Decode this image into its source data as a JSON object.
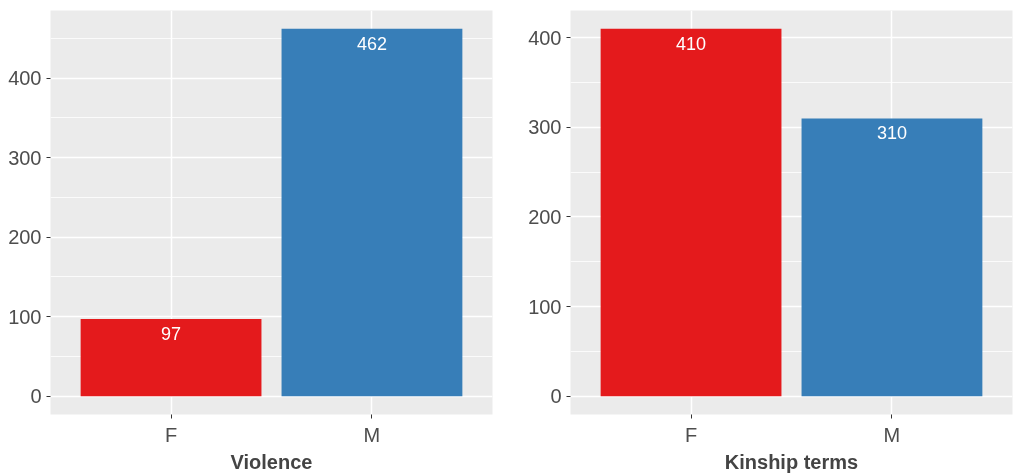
{
  "chart_data": [
    {
      "type": "bar",
      "xlabel": "Violence",
      "categories": [
        "F",
        "M"
      ],
      "values": [
        97,
        462
      ],
      "colors": [
        "#e41a1c",
        "#377eb8"
      ],
      "ylim": [
        -23.1,
        485.1
      ],
      "yticks": [
        0,
        100,
        200,
        300,
        400
      ],
      "grid": true,
      "data_labels": true
    },
    {
      "type": "bar",
      "xlabel": "Kinship terms",
      "categories": [
        "F",
        "M"
      ],
      "values": [
        410,
        310
      ],
      "colors": [
        "#e41a1c",
        "#377eb8"
      ],
      "ylim": [
        -20.5,
        430.5
      ],
      "yticks": [
        0,
        100,
        200,
        300,
        400
      ],
      "grid": true,
      "data_labels": true
    }
  ]
}
